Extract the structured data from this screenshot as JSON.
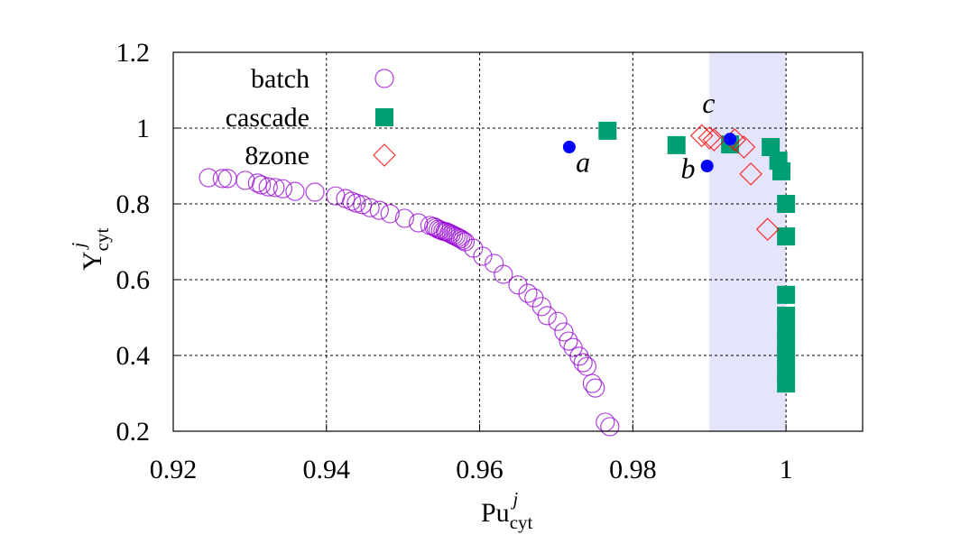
{
  "chart_data": {
    "type": "scatter",
    "title": "",
    "xlabel": {
      "base": "Pu",
      "sub": "cyt",
      "sup": "j"
    },
    "ylabel": {
      "base": "Y",
      "sub": "cyt",
      "sup": "j"
    },
    "xlim": [
      0.92,
      1.01
    ],
    "ylim": [
      0.2,
      1.2
    ],
    "xticks": [
      "0.92",
      "0.94",
      "0.96",
      "0.98",
      "1"
    ],
    "xtick_values": [
      0.92,
      0.94,
      0.96,
      0.98,
      1.0
    ],
    "yticks": [
      "0.2",
      "0.4",
      "0.6",
      "0.8",
      "1",
      "1.2"
    ],
    "ytick_values": [
      0.2,
      0.4,
      0.6,
      0.8,
      1.0,
      1.2
    ],
    "grid": true,
    "legend_position": "top-left",
    "shaded_band": {
      "x": [
        0.99,
        1.0
      ],
      "color": "#e4e4fb"
    },
    "series": [
      {
        "name": "batch",
        "marker": "open-circle",
        "color": "#9400d3",
        "x": [
          0.9246,
          0.9264,
          0.9271,
          0.9294,
          0.931,
          0.9315,
          0.9324,
          0.9333,
          0.9343,
          0.9359,
          0.9385,
          0.9412,
          0.9425,
          0.9433,
          0.9439,
          0.9447,
          0.9457,
          0.9469,
          0.9483,
          0.9502,
          0.952,
          0.9535,
          0.954,
          0.9543,
          0.9546,
          0.9549,
          0.9552,
          0.9555,
          0.9557,
          0.956,
          0.9563,
          0.9566,
          0.9569,
          0.9572,
          0.9575,
          0.9578,
          0.9581,
          0.9592,
          0.9604,
          0.9619,
          0.9631,
          0.965,
          0.9663,
          0.9671,
          0.9681,
          0.9688,
          0.9702,
          0.971,
          0.9716,
          0.9722,
          0.973,
          0.9735,
          0.974,
          0.9747,
          0.9751,
          0.9764,
          0.977
        ],
        "y": [
          0.869,
          0.867,
          0.867,
          0.862,
          0.855,
          0.85,
          0.845,
          0.843,
          0.84,
          0.833,
          0.831,
          0.821,
          0.814,
          0.807,
          0.802,
          0.798,
          0.79,
          0.783,
          0.774,
          0.762,
          0.75,
          0.743,
          0.74,
          0.737,
          0.733,
          0.731,
          0.728,
          0.727,
          0.726,
          0.723,
          0.72,
          0.717,
          0.714,
          0.711,
          0.708,
          0.704,
          0.7,
          0.683,
          0.662,
          0.643,
          0.614,
          0.586,
          0.564,
          0.552,
          0.529,
          0.505,
          0.49,
          0.462,
          0.438,
          0.421,
          0.398,
          0.381,
          0.371,
          0.326,
          0.314,
          0.224,
          0.212
        ]
      },
      {
        "name": "cascade",
        "marker": "filled-square",
        "color": "#009e73",
        "x": [
          0.9767,
          0.9857,
          0.9927,
          0.998,
          0.999,
          0.9994,
          1.0,
          1.0,
          1.0,
          1.0,
          1.0,
          1.0,
          1.0,
          1.0,
          1.0
        ],
        "y": [
          0.993,
          0.955,
          0.957,
          0.95,
          0.914,
          0.886,
          0.8,
          0.714,
          0.56,
          0.505,
          0.465,
          0.433,
          0.4,
          0.36,
          0.326
        ]
      },
      {
        "name": "8zone",
        "marker": "open-diamond",
        "color": "#ff0000",
        "x": [
          0.989,
          0.99,
          0.9906,
          0.9933,
          0.9945,
          0.9954,
          0.9976
        ],
        "y": [
          0.98,
          0.974,
          0.969,
          0.969,
          0.95,
          0.879,
          0.733
        ]
      },
      {
        "name": "",
        "marker": "filled-circle",
        "color": "#0000ff",
        "x": [
          0.9717,
          0.9897,
          0.9927
        ],
        "y": [
          0.95,
          0.9,
          0.971
        ]
      }
    ],
    "annotations": [
      {
        "text": "a",
        "x": 0.9735,
        "y": 0.885
      },
      {
        "text": "b",
        "x": 0.9872,
        "y": 0.868
      },
      {
        "text": "c",
        "x": 0.9899,
        "y": 1.04
      }
    ]
  }
}
